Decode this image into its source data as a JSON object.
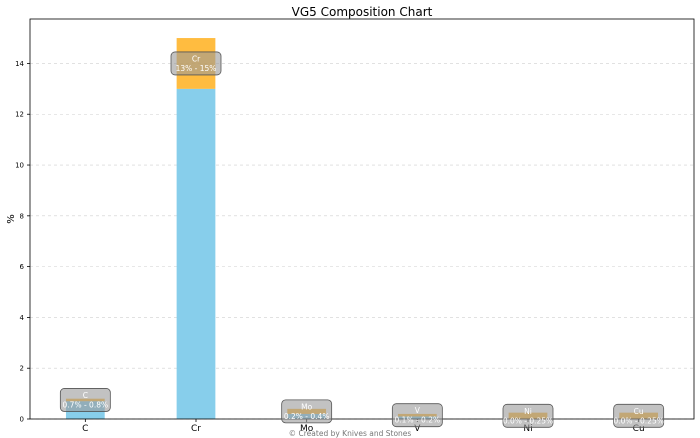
{
  "chart_data": {
    "type": "bar",
    "title": "VG5 Composition Chart",
    "xlabel": "",
    "ylabel": "%",
    "ylim": [
      0,
      15.75
    ],
    "yticks": [
      0,
      2,
      4,
      6,
      8,
      10,
      12,
      14
    ],
    "grid": "horizontal dashed",
    "categories": [
      "C",
      "Cr",
      "Mo",
      "V",
      "Ni",
      "Cu"
    ],
    "series": [
      {
        "role": "min",
        "values": [
          0.7,
          13,
          0.2,
          0.1,
          0.0,
          0.0
        ]
      },
      {
        "role": "range",
        "values": [
          0.1,
          2,
          0.2,
          0.1,
          0.25,
          0.25
        ]
      }
    ],
    "annotations": [
      {
        "element": "C",
        "range": "0.7% - 0.8%"
      },
      {
        "element": "Cr",
        "range": "13% - 15%"
      },
      {
        "element": "Mo",
        "range": "0.2% - 0.4%"
      },
      {
        "element": "V",
        "range": "0.1% - 0.2%"
      },
      {
        "element": "Ni",
        "range": "0.0% - 0.25%"
      },
      {
        "element": "Cu",
        "range": "0.0% - 0.25%"
      }
    ],
    "colors": {
      "min": "#87ceeb",
      "range": "#ffa500",
      "annotation_box": "#999999"
    },
    "footer": "© Created by Knives and Stones"
  }
}
